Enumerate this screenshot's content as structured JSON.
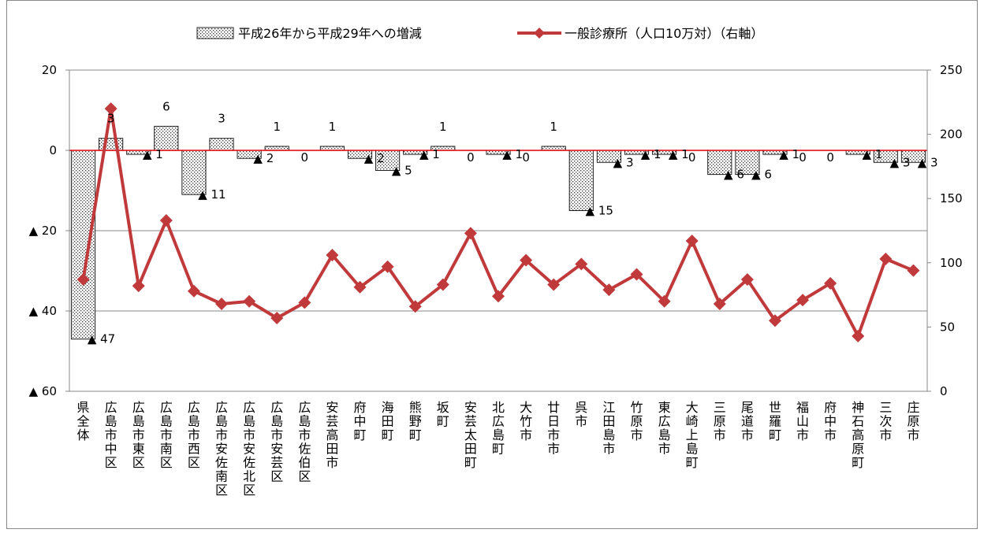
{
  "chart_data": {
    "type": "bar+line",
    "categories": [
      "県全体",
      "広島市中区",
      "広島市東区",
      "広島市南区",
      "広島市西区",
      "広島市安佐南区",
      "広島市安佐北区",
      "広島市安芸区",
      "広島市佐伯区",
      "安芸高田市",
      "府中町",
      "海田町",
      "熊野町",
      "坂町",
      "安芸太田町",
      "北広島町",
      "大竹市",
      "廿日市市",
      "呉市",
      "江田島市",
      "竹原市",
      "東広島市",
      "大崎上島町",
      "三原市",
      "尾道市",
      "世羅町",
      "福山市",
      "府中市",
      "神石高原町",
      "三次市",
      "庄原市"
    ],
    "series": [
      {
        "name": "平成26年から平成29年への増減",
        "type": "bar",
        "axis": "left",
        "values": [
          -47,
          3,
          -1,
          6,
          -11,
          3,
          -2,
          1,
          0,
          1,
          -2,
          -5,
          -1,
          1,
          0,
          -1,
          0,
          1,
          -15,
          -3,
          -1,
          -1,
          0,
          -6,
          -6,
          -1,
          0,
          0,
          -1,
          -3,
          -3
        ],
        "labels": [
          "▲ 47",
          "3",
          "▲ 1",
          "6",
          "▲ 11",
          "3",
          "▲ 2",
          "1",
          "0",
          "1",
          "▲ 2",
          "▲ 5",
          "▲ 1",
          "1",
          "0",
          "▲ 1",
          "0",
          "1",
          "▲ 15",
          "▲ 3",
          "▲ 1",
          "▲ 1",
          "0",
          "▲ 6",
          "▲ 6",
          "▲ 1",
          "0",
          "0",
          "▲ 1",
          "▲ 3",
          "▲ 3"
        ],
        "color": "#000000"
      },
      {
        "name": "一般診療所（人口10万対）（右軸）",
        "type": "line",
        "axis": "right",
        "values": [
          87,
          220,
          82,
          133,
          78,
          68,
          70,
          57,
          69,
          106,
          81,
          97,
          66,
          83,
          123,
          74,
          102,
          83,
          99,
          79,
          91,
          70,
          117,
          68,
          87,
          55,
          71,
          84,
          43,
          103,
          94
        ],
        "color": "#C0393B"
      }
    ],
    "left_axis": {
      "min": -60,
      "max": 20,
      "ticks": [
        20,
        0,
        -20,
        -40,
        -60
      ],
      "tick_labels": [
        "20",
        "0",
        "▲ 20",
        "▲ 40",
        "▲ 60"
      ]
    },
    "right_axis": {
      "min": 0,
      "max": 250,
      "ticks": [
        250,
        200,
        150,
        100,
        50,
        0
      ],
      "tick_labels": [
        "250",
        "200",
        "150",
        "100",
        "50",
        "0"
      ]
    },
    "grid": true,
    "legend_position": "top"
  }
}
